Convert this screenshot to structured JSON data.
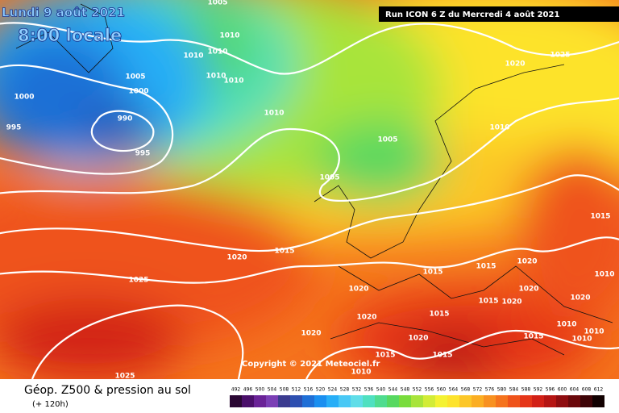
{
  "header": {
    "date": "Lundi 9 août 2021",
    "time": "8:00 locale",
    "run": "Run ICON 6 Z du Mercredi 4 août 2021",
    "copyright": "Copyright © 2021 Meteociel.fr"
  },
  "footer": {
    "title": "Géop. Z500 & pression au sol",
    "lead": "(+ 120h)"
  },
  "legend": {
    "labels": [
      "492",
      "496",
      "500",
      "504",
      "508",
      "512",
      "516",
      "520",
      "524",
      "528",
      "532",
      "536",
      "540",
      "544",
      "548",
      "552",
      "556",
      "560",
      "564",
      "568",
      "572",
      "576",
      "580",
      "584",
      "588",
      "592",
      "596",
      "600",
      "604",
      "608",
      "612"
    ],
    "colors": [
      "#2a0733",
      "#4a0f6a",
      "#6a2397",
      "#7b3fb5",
      "#3b3b8f",
      "#2d4fb0",
      "#1f6fd6",
      "#1a8ff0",
      "#27aef7",
      "#49c8f5",
      "#5fdde8",
      "#4fe0c0",
      "#4fdc8f",
      "#57d860",
      "#79dc3c",
      "#a8e43a",
      "#d2ec36",
      "#f4f232",
      "#fde32c",
      "#fcc728",
      "#fbae22",
      "#f89120",
      "#f5731d",
      "#ef531a",
      "#e53518",
      "#d22016",
      "#b51513",
      "#8f0d10",
      "#6a080b",
      "#3e0407",
      "#120101"
    ]
  },
  "isobar_labels": [
    1005,
    1010,
    1010,
    1010,
    1010,
    1010,
    1005,
    1000,
    1000,
    990,
    995,
    995,
    1010,
    1005,
    1005,
    1020,
    1025,
    1010,
    1015,
    1015,
    1020,
    1025,
    1015,
    1015,
    1020,
    1020,
    1020,
    1015,
    1020,
    1020,
    1020,
    1015,
    1010,
    1010,
    1015,
    1010,
    1020,
    1020,
    1015,
    1015,
    1010,
    1010,
    1025
  ]
}
